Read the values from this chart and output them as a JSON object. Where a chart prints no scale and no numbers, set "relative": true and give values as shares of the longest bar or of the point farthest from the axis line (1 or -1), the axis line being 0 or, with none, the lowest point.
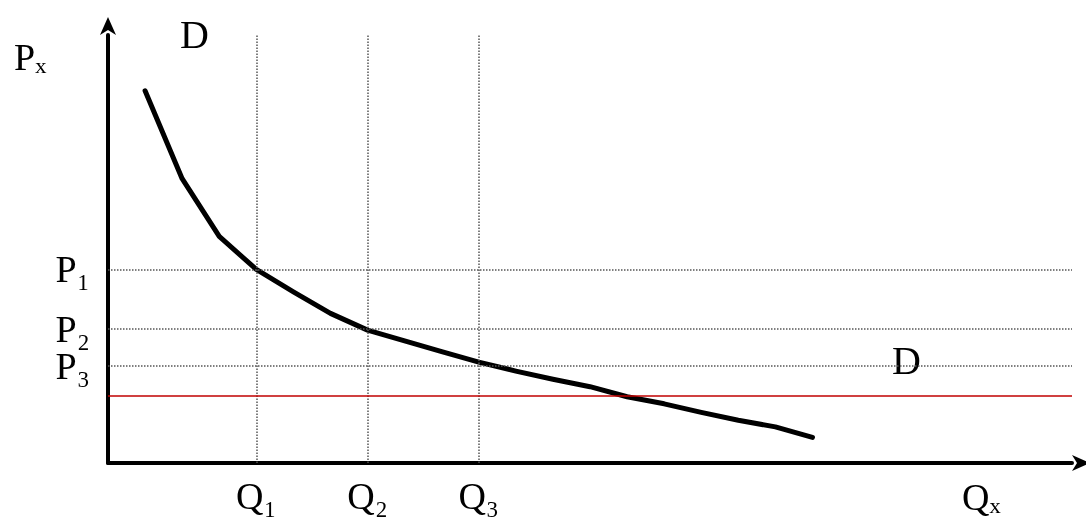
{
  "chart_data": {
    "type": "line",
    "relative": true,
    "xlabel": "Qₓ",
    "ylabel": "Pₓ",
    "categories": [
      null,
      null,
      null,
      null,
      "Q₁",
      null,
      null,
      "Q₂",
      null,
      null,
      "Q₃",
      null,
      null,
      null,
      null,
      null,
      null,
      null,
      null,
      null,
      null,
      null,
      null,
      null,
      null,
      null,
      null
    ],
    "series": [
      {
        "color": "#000000",
        "values": [
          null,
          1,
          0.764,
          0.609,
          0.52,
          0.46,
          0.402,
          0.357,
          0.328,
          0.299,
          0.271,
          0.247,
          0.225,
          0.205,
          0.178,
          0.159,
          0.136,
          0.115,
          0.097,
          0.069,
          null,
          null,
          null,
          null,
          null,
          null,
          null
        ]
      }
    ],
    "ref_lines": [
      {
        "axis": "x",
        "value": "Q₁",
        "color": "#555555",
        "line_style": "dotted"
      },
      {
        "axis": "x",
        "value": "Q₂",
        "color": "#555555",
        "line_style": "dotted"
      },
      {
        "axis": "x",
        "value": "Q₃",
        "color": "#555555",
        "line_style": "dotted"
      },
      {
        "axis": "y",
        "value": 0.52,
        "label": "P₁",
        "color": "#555555",
        "line_style": "dotted"
      },
      {
        "axis": "y",
        "value": 0.357,
        "label": "P₂",
        "color": "#555555",
        "line_style": "dotted"
      },
      {
        "axis": "y",
        "value": 0.263,
        "label": "P₃",
        "color": "#555555",
        "line_style": "dotted"
      },
      {
        "axis": "y",
        "value": 0.177,
        "color": "#c00000",
        "line_style": "solid"
      }
    ],
    "annotations": [
      "D",
      "D"
    ],
    "grid": false,
    "marker": "none",
    "line_style": "solid"
  }
}
